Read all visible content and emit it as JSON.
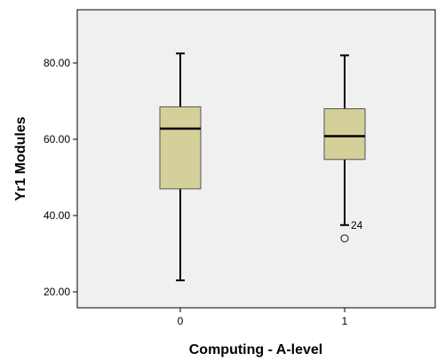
{
  "chart_data": {
    "type": "boxplot",
    "xlabel": "Computing - A-level",
    "ylabel": "Yr1 Modules",
    "ylim": [
      15,
      92
    ],
    "yticks": [
      "20.00",
      "40.00",
      "60.00",
      "80.00"
    ],
    "ytick_values": [
      20,
      40,
      60,
      80
    ],
    "categories": [
      "0",
      "1"
    ],
    "boxes": [
      {
        "category": "0",
        "whisker_low": 23.0,
        "q1": 47.0,
        "median": 62.8,
        "q3": 68.5,
        "whisker_high": 82.5,
        "outliers": []
      },
      {
        "category": "1",
        "whisker_low": 37.5,
        "q1": 54.7,
        "median": 60.8,
        "q3": 68.0,
        "whisker_high": 82.0,
        "outliers": [
          {
            "value": 34.0,
            "label": "24"
          }
        ]
      }
    ],
    "grid": false,
    "plot_background": "#f0f0f0",
    "box_fill": "#d5cf9a",
    "box_stroke": "#555555"
  }
}
